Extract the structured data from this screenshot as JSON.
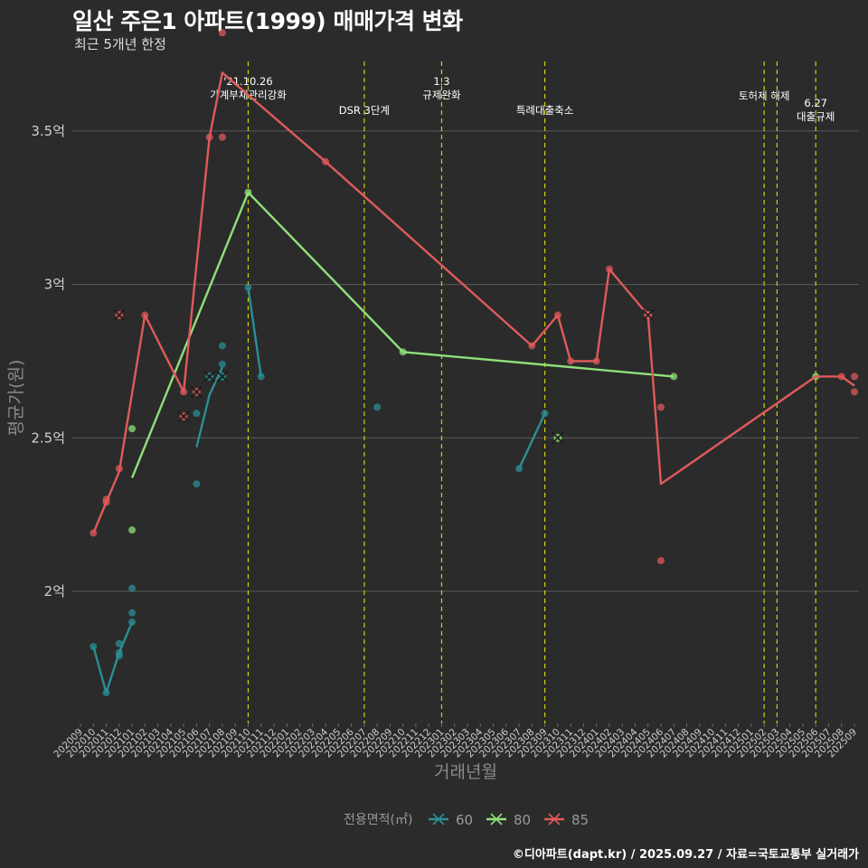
{
  "title": "일산 주은1 아파트(1999) 매매가격 변화",
  "subtitle": "최근 5개년 한정",
  "caption": "©디아파트(dapt.kr) / 2025.09.27 / 자료=국토교통부 실거래가",
  "chart_data": {
    "type": "line",
    "xlabel": "거래년월",
    "ylabel": "평균가(원)",
    "ylim": [
      1.57,
      3.75
    ],
    "yticks": [
      2.0,
      2.5,
      3.0,
      3.5
    ],
    "ytick_labels": [
      "2억",
      "2.5억",
      "3억",
      "3.5억"
    ],
    "x_categories": [
      "202009",
      "202010",
      "202011",
      "202012",
      "202101",
      "202102",
      "202103",
      "202104",
      "202105",
      "202106",
      "202107",
      "202108",
      "202109",
      "202110",
      "202111",
      "202112",
      "202201",
      "202202",
      "202203",
      "202204",
      "202205",
      "202206",
      "202207",
      "202208",
      "202209",
      "202210",
      "202211",
      "202212",
      "202301",
      "202302",
      "202303",
      "202304",
      "202305",
      "202306",
      "202307",
      "202308",
      "202309",
      "202310",
      "202311",
      "202312",
      "202401",
      "202402",
      "202403",
      "202404",
      "202405",
      "202406",
      "202407",
      "202408",
      "202409",
      "202410",
      "202411",
      "202412",
      "202501",
      "202502",
      "202503",
      "202504",
      "202505",
      "202506",
      "202507",
      "202508",
      "202509"
    ],
    "legend_title": "전용면적(㎡)",
    "series": [
      {
        "name": "60",
        "color": "#2a8f95",
        "line": [
          [
            "202010",
            1.82
          ],
          [
            "202011",
            1.67
          ],
          [
            "202012",
            1.8
          ],
          [
            "202101",
            1.9
          ]
        ],
        "line2": [
          [
            "202106",
            2.47
          ],
          [
            "202107",
            2.64
          ],
          [
            "202108",
            2.73
          ]
        ],
        "line3": [
          [
            "202110",
            2.99
          ],
          [
            "202111",
            2.7
          ]
        ],
        "line4": [
          [
            "202307",
            2.4
          ],
          [
            "202309",
            2.58
          ]
        ],
        "points": [
          [
            "202010",
            1.82
          ],
          [
            "202011",
            1.67
          ],
          [
            "202012",
            1.8
          ],
          [
            "202012",
            1.79
          ],
          [
            "202012",
            1.83
          ],
          [
            "202101",
            1.9
          ],
          [
            "202101",
            1.93
          ],
          [
            "202101",
            2.01
          ],
          [
            "202106",
            2.58
          ],
          [
            "202106",
            2.35
          ],
          [
            "202108",
            2.74
          ],
          [
            "202108",
            2.8
          ],
          [
            "202110",
            2.99
          ],
          [
            "202111",
            2.7
          ],
          [
            "202208",
            2.6
          ],
          [
            "202307",
            2.4
          ],
          [
            "202309",
            2.58
          ]
        ],
        "cancelled": [
          [
            "202107",
            2.7
          ],
          [
            "202108",
            2.7
          ]
        ]
      },
      {
        "name": "80",
        "color": "#90e07a",
        "line": [
          [
            "202101",
            2.37
          ],
          [
            "202110",
            3.3
          ],
          [
            "202210",
            2.78
          ],
          [
            "202407",
            2.7
          ]
        ],
        "points": [
          [
            "202101",
            2.53
          ],
          [
            "202101",
            2.2
          ],
          [
            "202110",
            3.3
          ],
          [
            "202210",
            2.78
          ],
          [
            "202407",
            2.7
          ],
          [
            "202506",
            2.7
          ]
        ],
        "cancelled": [
          [
            "202310",
            2.5
          ]
        ]
      },
      {
        "name": "85",
        "color": "#e05a5a",
        "line": [
          [
            "202010",
            2.19
          ],
          [
            "202011",
            2.29
          ],
          [
            "202012",
            2.39
          ],
          [
            "202102",
            2.9
          ],
          [
            "202105",
            2.65
          ],
          [
            "202107",
            3.48
          ],
          [
            "202108",
            3.69
          ],
          [
            "202204",
            3.4
          ],
          [
            "202308",
            2.8
          ],
          [
            "202310",
            2.9
          ],
          [
            "202311",
            2.75
          ],
          [
            "202401",
            2.75
          ],
          [
            "202402",
            3.05
          ],
          [
            "202405",
            2.9
          ],
          [
            "202406",
            2.35
          ],
          [
            "202506",
            2.7
          ],
          [
            "202508",
            2.7
          ],
          [
            "202509",
            2.67
          ]
        ],
        "points": [
          [
            "202010",
            2.19
          ],
          [
            "202011",
            2.29
          ],
          [
            "202011",
            2.3
          ],
          [
            "202012",
            2.4
          ],
          [
            "202102",
            2.9
          ],
          [
            "202105",
            2.65
          ],
          [
            "202107",
            3.48
          ],
          [
            "202108",
            3.48
          ],
          [
            "202108",
            3.82
          ],
          [
            "202204",
            3.4
          ],
          [
            "202308",
            2.8
          ],
          [
            "202310",
            2.9
          ],
          [
            "202311",
            2.75
          ],
          [
            "202401",
            2.75
          ],
          [
            "202402",
            3.05
          ],
          [
            "202405",
            2.9
          ],
          [
            "202406",
            2.6
          ],
          [
            "202406",
            2.1
          ],
          [
            "202508",
            2.7
          ],
          [
            "202509",
            2.7
          ],
          [
            "202509",
            2.65
          ]
        ],
        "cancelled": [
          [
            "202012",
            2.9
          ],
          [
            "202105",
            2.57
          ],
          [
            "202106",
            2.65
          ],
          [
            "202405",
            2.9
          ]
        ]
      }
    ],
    "events": [
      {
        "x": "202110",
        "lines": [
          "'21.10.26",
          "가계부채관리강화"
        ],
        "row": 0
      },
      {
        "x": "202207",
        "lines": [
          "DSR 3단계"
        ],
        "row": 2
      },
      {
        "x": "202301",
        "lines": [
          "1.3",
          "규제완화"
        ],
        "row": 0
      },
      {
        "x": "202309",
        "lines": [
          "특례대출축소"
        ],
        "row": 2
      },
      {
        "x": "202502",
        "lines": [
          "토허제 해제"
        ],
        "row": 1
      },
      {
        "x": "202503",
        "lines": [],
        "row": 1
      },
      {
        "x": "202506",
        "lines": [
          "6.27",
          "대출규제"
        ],
        "row": 1.5
      }
    ]
  }
}
